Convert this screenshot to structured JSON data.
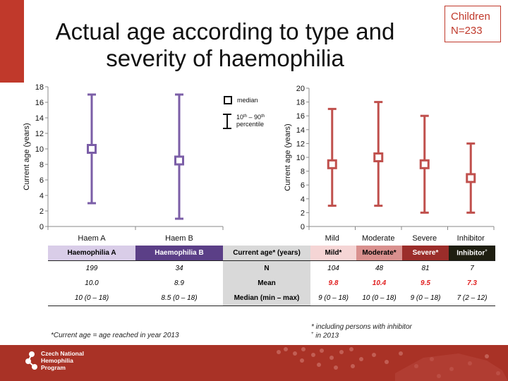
{
  "header": {
    "title_line1": "Actual age according to type and",
    "title_line2": "severity of haemophilia",
    "badge_line1": "Children",
    "badge_line2": "N=233"
  },
  "legend": {
    "median": "median",
    "percentile_line1_a": "10",
    "percentile_line1_sup_a": "th",
    "percentile_line1_b": " – 90",
    "percentile_line1_sup_b": "th",
    "percentile_line2": "percentile"
  },
  "chart_data": [
    {
      "type": "scatter",
      "ylabel": "Current age (years)",
      "ylim": [
        0,
        18
      ],
      "yticks": [
        0,
        2,
        4,
        6,
        8,
        10,
        12,
        14,
        16,
        18
      ],
      "color": "#7b5ea7",
      "categories": [
        "Haem A",
        "Haem B"
      ],
      "median": [
        10,
        8.5
      ],
      "p10": [
        3,
        1
      ],
      "p90": [
        17,
        17
      ]
    },
    {
      "type": "scatter",
      "ylabel": "Current age (years)",
      "ylim": [
        0,
        20
      ],
      "yticks": [
        0,
        2,
        4,
        6,
        8,
        10,
        12,
        14,
        16,
        18,
        20
      ],
      "color": "#c0504d",
      "categories": [
        "Mild",
        "Moderate",
        "Severe",
        "Inhibitor"
      ],
      "median": [
        9,
        10,
        9,
        7
      ],
      "p10": [
        3,
        3,
        2,
        2
      ],
      "p90": [
        17,
        18,
        16,
        12
      ]
    }
  ],
  "table": {
    "headers": [
      "Haemophilia A",
      "Haemophilia B",
      "Current age* (years)",
      "Mild*",
      "Moderate*",
      "Severe*",
      "Inhibitor"
    ],
    "inhibitor_sup": "+",
    "header_colors": [
      "#d9cde8",
      "#5b3f87",
      "#d9d9d9",
      "#f5d5d5",
      "#d9908e",
      "#9b2d2a",
      "#1e1e10"
    ],
    "rows": [
      {
        "label": "N",
        "values": [
          "199",
          "34",
          "104",
          "48",
          "81",
          "7"
        ]
      },
      {
        "label": "Mean",
        "values": [
          "10.0",
          "8.9",
          "9.8",
          "10.4",
          "9.5",
          "7.3"
        ]
      },
      {
        "label": "Median (min – max)",
        "values": [
          "10 (0 – 18)",
          "8.5 (0 – 18)",
          "9 (0 – 18)",
          "10 (0 – 18)",
          "9 (0 – 18)",
          "7 (2 – 12)"
        ]
      }
    ]
  },
  "footnotes": {
    "current_age": "*Current age = age reached in year 2013",
    "including": "* including persons with inhibitor",
    "in2013_sym": "+",
    "in2013": "  in 2013"
  },
  "footer": {
    "line1": "Czech National",
    "line2": "Hemophilia",
    "line3": "Program"
  }
}
